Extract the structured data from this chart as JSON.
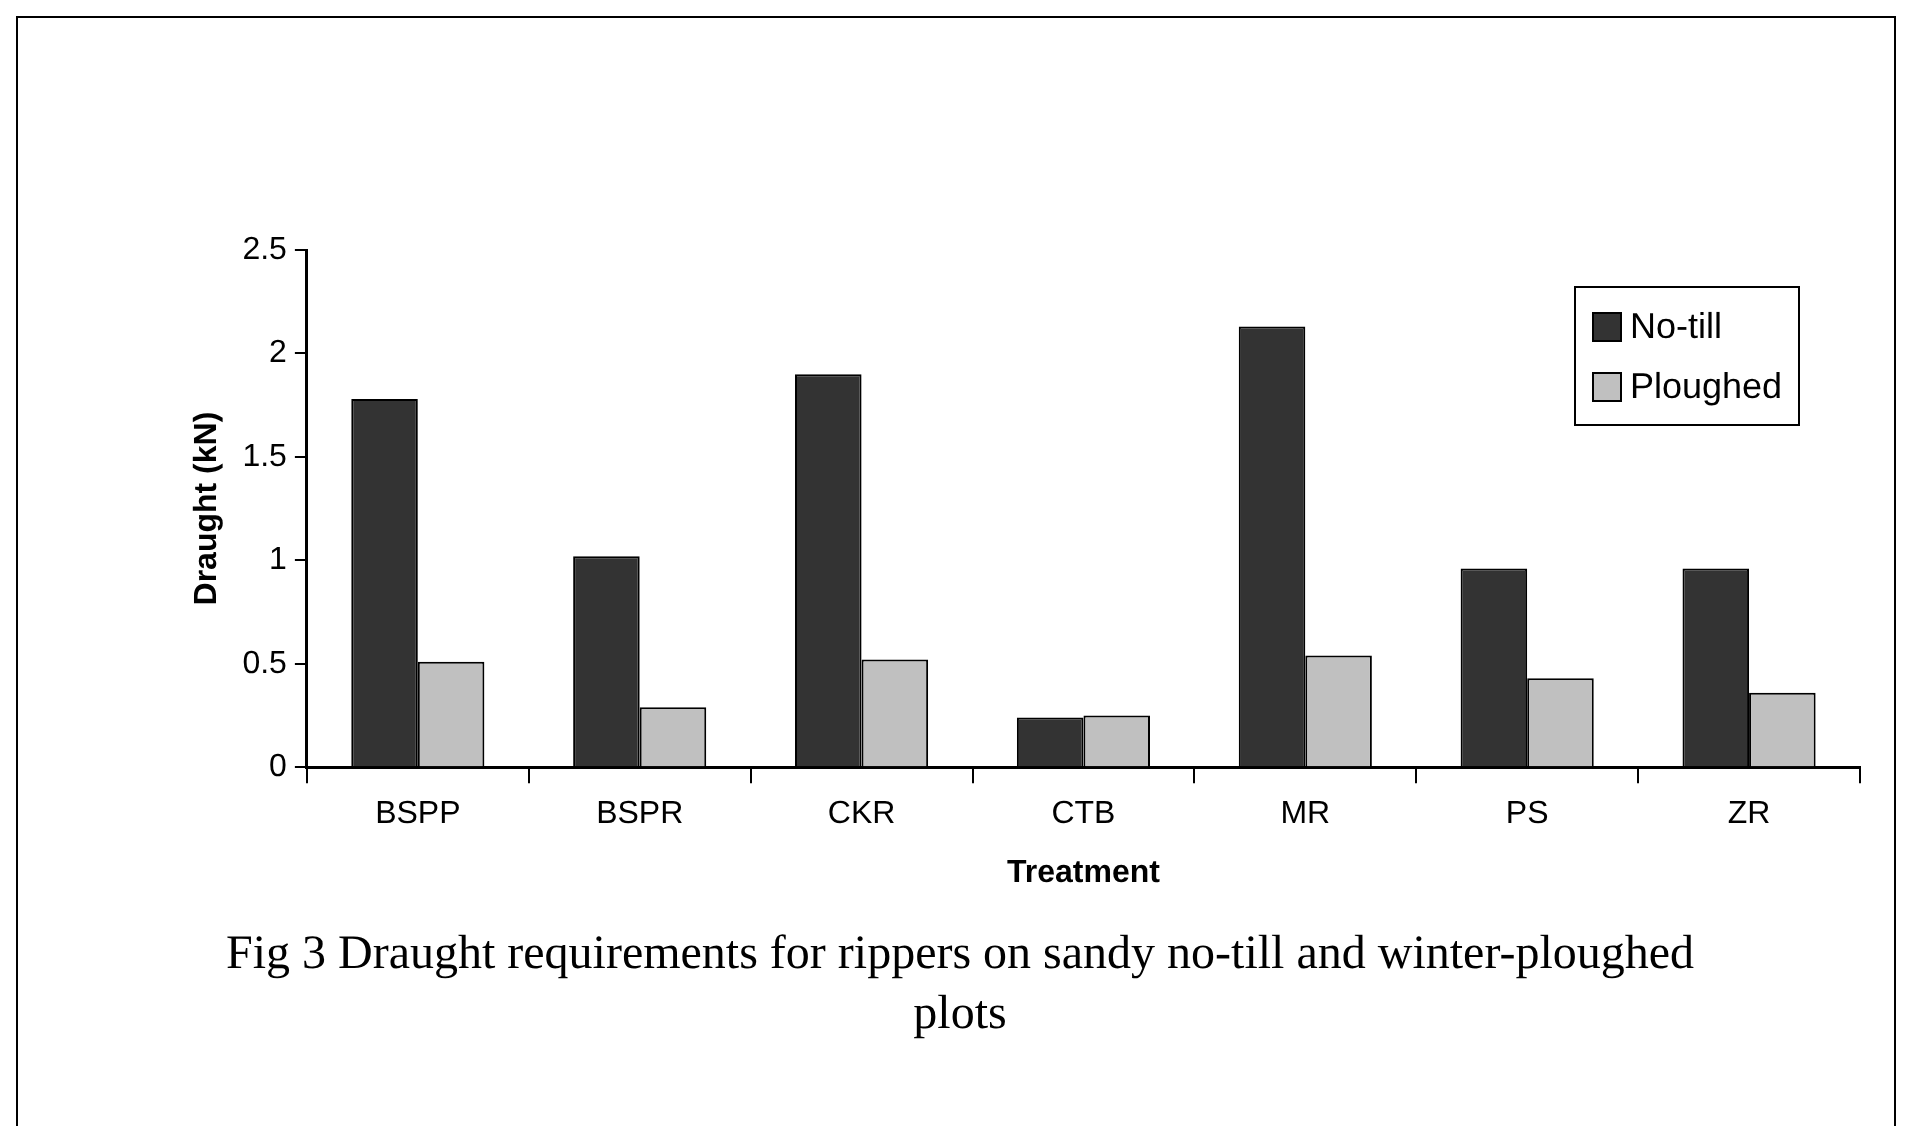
{
  "chart_data": {
    "type": "bar",
    "title": "Fig 3  Draught requirements for rippers on sandy no-till and winter-ploughed plots",
    "xlabel": "Treatment",
    "ylabel": "Draught (kN)",
    "categories": [
      "BSPP",
      "BSPR",
      "CKR",
      "CTB",
      "MR",
      "PS",
      "ZR"
    ],
    "series": [
      {
        "name": "No-till",
        "color": "#333333",
        "values": [
          1.78,
          1.02,
          1.9,
          0.24,
          2.13,
          0.96,
          0.96
        ]
      },
      {
        "name": "Ploughed",
        "color": "#c0c0c0",
        "values": [
          0.51,
          0.29,
          0.52,
          0.25,
          0.54,
          0.43,
          0.36
        ]
      }
    ],
    "ylim": [
      0,
      2.5
    ],
    "yticks": [
      0,
      0.5,
      1,
      1.5,
      2,
      2.5
    ],
    "grid": false,
    "legend": "top right"
  }
}
